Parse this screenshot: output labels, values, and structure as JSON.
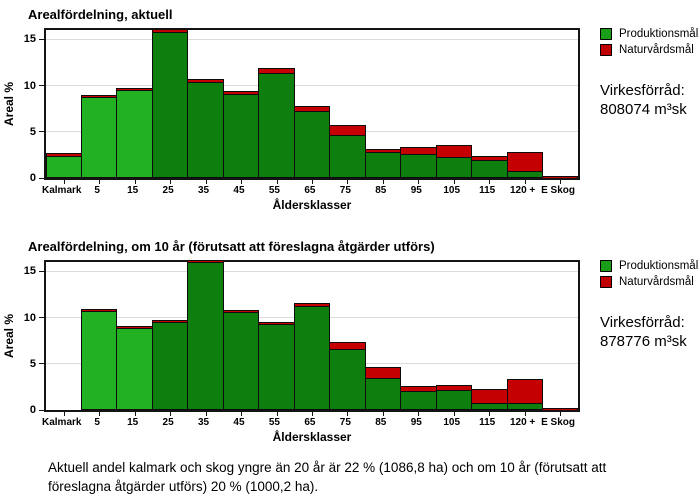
{
  "colors": {
    "prod_light": "#22b122",
    "prod_dark": "#0e7e0e",
    "natur": "#c40000",
    "legend_prod": "#1a9e1a",
    "legend_natur": "#c00000",
    "grid": "#dcdcdc",
    "frame": "#141414"
  },
  "chart_data": [
    {
      "type": "bar",
      "title": "Arealfördelning, aktuell",
      "xlabel": "Åldersklasser",
      "ylabel": "Areal %",
      "ylim": [
        0,
        16
      ],
      "yticks": [
        0,
        5,
        10,
        15
      ],
      "grid": "horizontal",
      "legend_position": "right-top",
      "categories": [
        "Kalmark",
        "5",
        "15",
        "25",
        "35",
        "45",
        "55",
        "65",
        "75",
        "85",
        "95",
        "105",
        "115",
        "120 +",
        "E Skog"
      ],
      "series": [
        {
          "name": "Produktionsmål",
          "values": [
            2.4,
            8.8,
            9.5,
            15.8,
            10.4,
            9.1,
            11.4,
            7.2,
            4.7,
            2.8,
            2.6,
            2.3,
            1.9,
            0.8,
            0
          ]
        },
        {
          "name": "Naturvårdsmål",
          "values": [
            0.3,
            0.1,
            0.2,
            0.3,
            0.3,
            0.3,
            0.45,
            0.6,
            1.0,
            0.35,
            0.8,
            1.3,
            0.5,
            2.0,
            0.15
          ]
        }
      ],
      "prod_shade": [
        "light",
        "light",
        "light",
        "dark",
        "dark",
        "dark",
        "dark",
        "dark",
        "dark",
        "dark",
        "dark",
        "dark",
        "dark",
        "dark",
        "dark"
      ],
      "legend": [
        {
          "label": "Produktionsmål",
          "color": "#1a9e1a"
        },
        {
          "label": "Naturvårdsmål",
          "color": "#c00000"
        }
      ],
      "stock_label": "Virkesförråd:",
      "stock_value": "808074 m³sk"
    },
    {
      "type": "bar",
      "title": "Arealfördelning, om 10 år (förutsatt att föreslagna åtgärder utförs)",
      "xlabel": "Åldersklasser",
      "ylabel": "Areal %",
      "ylim": [
        0,
        16
      ],
      "yticks": [
        0,
        5,
        10,
        15
      ],
      "grid": "horizontal",
      "legend_position": "right-top",
      "categories": [
        "Kalmark",
        "5",
        "15",
        "25",
        "35",
        "45",
        "55",
        "65",
        "75",
        "85",
        "95",
        "105",
        "115",
        "120 +",
        "E Skog"
      ],
      "series": [
        {
          "name": "Produktionsmål",
          "values": [
            0,
            10.7,
            8.9,
            9.5,
            16.0,
            10.6,
            9.3,
            11.2,
            6.6,
            3.5,
            2.1,
            2.2,
            0.8,
            0.8,
            0
          ]
        },
        {
          "name": "Naturvårdsmål",
          "values": [
            0,
            0.2,
            0.1,
            0.2,
            0.15,
            0.25,
            0.2,
            0.35,
            0.7,
            1.2,
            0.5,
            0.55,
            1.5,
            2.5,
            0.15
          ]
        }
      ],
      "prod_shade": [
        "dark",
        "light",
        "light",
        "dark",
        "dark",
        "dark",
        "dark",
        "dark",
        "dark",
        "dark",
        "dark",
        "dark",
        "dark",
        "dark",
        "dark"
      ],
      "legend": [
        {
          "label": "Produktionsmål",
          "color": "#1a9e1a"
        },
        {
          "label": "Naturvårdsmål",
          "color": "#c00000"
        }
      ],
      "stock_label": "Virkesförråd:",
      "stock_value": "878776 m³sk"
    }
  ],
  "caption": "Aktuell andel kalmark och skog yngre än 20 år är 22 % (1086,8 ha) och om 10 år (förutsatt att föreslagna åtgärder utförs) 20 % (1000,2 ha)."
}
